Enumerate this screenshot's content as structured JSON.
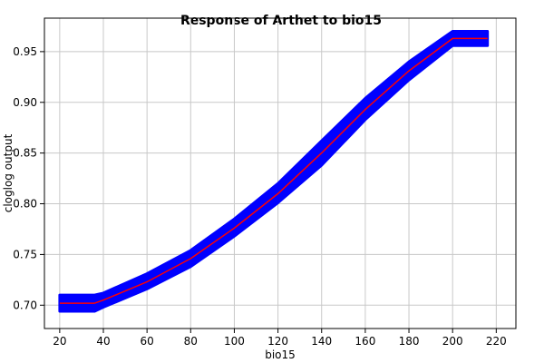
{
  "chart_data": {
    "type": "line",
    "title": "Response of Arthet to bio15",
    "xlabel": "bio15",
    "ylabel": "cloglog output",
    "xlim": [
      13,
      229
    ],
    "ylim": [
      0.677,
      0.983
    ],
    "xticks": [
      20,
      40,
      60,
      80,
      100,
      120,
      140,
      160,
      180,
      200,
      220
    ],
    "yticks": [
      0.7,
      0.75,
      0.8,
      0.85,
      0.9,
      0.95
    ],
    "ytick_labels": [
      "0.70",
      "0.75",
      "0.80",
      "0.85",
      "0.90",
      "0.95"
    ],
    "grid": true,
    "series": [
      {
        "role": "band",
        "color": "#0000ff",
        "x": [
          20,
          36,
          40,
          60,
          80,
          100,
          120,
          140,
          160,
          180,
          200,
          216
        ],
        "y_low": [
          0.694,
          0.694,
          0.698,
          0.716,
          0.738,
          0.768,
          0.801,
          0.838,
          0.883,
          0.922,
          0.956,
          0.956
        ],
        "y_high": [
          0.71,
          0.71,
          0.712,
          0.731,
          0.754,
          0.785,
          0.82,
          0.862,
          0.904,
          0.94,
          0.97,
          0.97
        ]
      },
      {
        "role": "mean",
        "color": "#ff0000",
        "x": [
          20,
          36,
          40,
          60,
          80,
          100,
          120,
          140,
          160,
          180,
          200,
          216
        ],
        "y": [
          0.702,
          0.702,
          0.705,
          0.723,
          0.746,
          0.776,
          0.81,
          0.85,
          0.893,
          0.931,
          0.963,
          0.963
        ]
      }
    ]
  }
}
